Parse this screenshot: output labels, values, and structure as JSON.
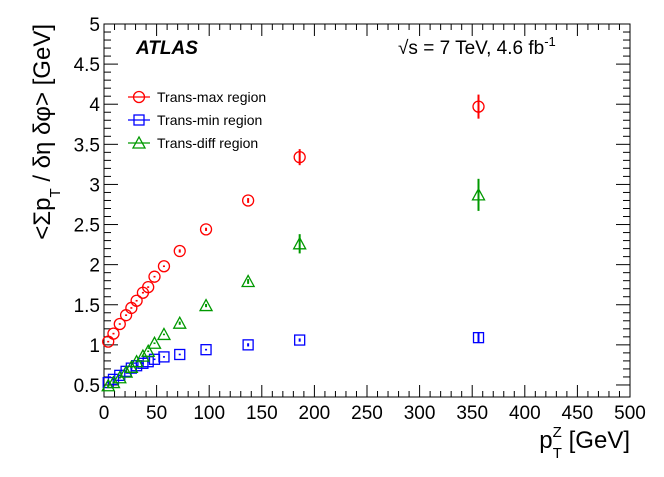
{
  "chart_data": {
    "type": "scatter",
    "xlabel": {
      "main": "p",
      "sup": "Z",
      "sub": "T",
      "rest": " [GeV]"
    },
    "ylabel": {
      "main": "<Σp",
      "sub": "T",
      "rest": " / δη δφ> [GeV]"
    },
    "annotations": {
      "experiment": "ATLAS",
      "energy": "√s = 7 TeV, 4.6 fb",
      "energy_sup": "-1"
    },
    "x": [
      4,
      9,
      15,
      21,
      26,
      31,
      37,
      42,
      48,
      57,
      72,
      97,
      137,
      186,
      356
    ],
    "series": [
      {
        "name": "Trans-max region",
        "color": "#ff0000",
        "marker": "circle",
        "values": [
          1.04,
          1.14,
          1.26,
          1.37,
          1.46,
          1.55,
          1.65,
          1.72,
          1.85,
          1.98,
          2.17,
          2.44,
          2.8,
          3.34,
          3.97
        ],
        "errors": [
          0.01,
          0.01,
          0.01,
          0.01,
          0.01,
          0.01,
          0.01,
          0.01,
          0.01,
          0.01,
          0.02,
          0.02,
          0.03,
          0.1,
          0.15
        ]
      },
      {
        "name": "Trans-min region",
        "color": "#0000ff",
        "marker": "square",
        "values": [
          0.53,
          0.57,
          0.62,
          0.67,
          0.71,
          0.74,
          0.77,
          0.79,
          0.82,
          0.85,
          0.88,
          0.94,
          1.0,
          1.06,
          1.09
        ],
        "errors": [
          0.01,
          0.01,
          0.01,
          0.01,
          0.01,
          0.01,
          0.01,
          0.01,
          0.01,
          0.01,
          0.01,
          0.01,
          0.02,
          0.02,
          0.06
        ]
      },
      {
        "name": "Trans-diff region",
        "color": "#009900",
        "marker": "triangle",
        "values": [
          0.49,
          0.53,
          0.59,
          0.66,
          0.72,
          0.79,
          0.86,
          0.92,
          1.02,
          1.13,
          1.27,
          1.49,
          1.79,
          2.26,
          2.87
        ],
        "errors": [
          0.01,
          0.01,
          0.01,
          0.01,
          0.01,
          0.01,
          0.01,
          0.01,
          0.01,
          0.01,
          0.02,
          0.02,
          0.03,
          0.12,
          0.2
        ]
      }
    ],
    "xlim": [
      0,
      500
    ],
    "xticks": [
      0,
      50,
      100,
      150,
      200,
      250,
      300,
      350,
      400,
      450,
      500
    ],
    "ylim": [
      0.35,
      5
    ],
    "yticks": [
      0.5,
      1,
      1.5,
      2,
      2.5,
      3,
      3.5,
      4,
      4.5,
      5
    ],
    "legend": "upper left"
  }
}
